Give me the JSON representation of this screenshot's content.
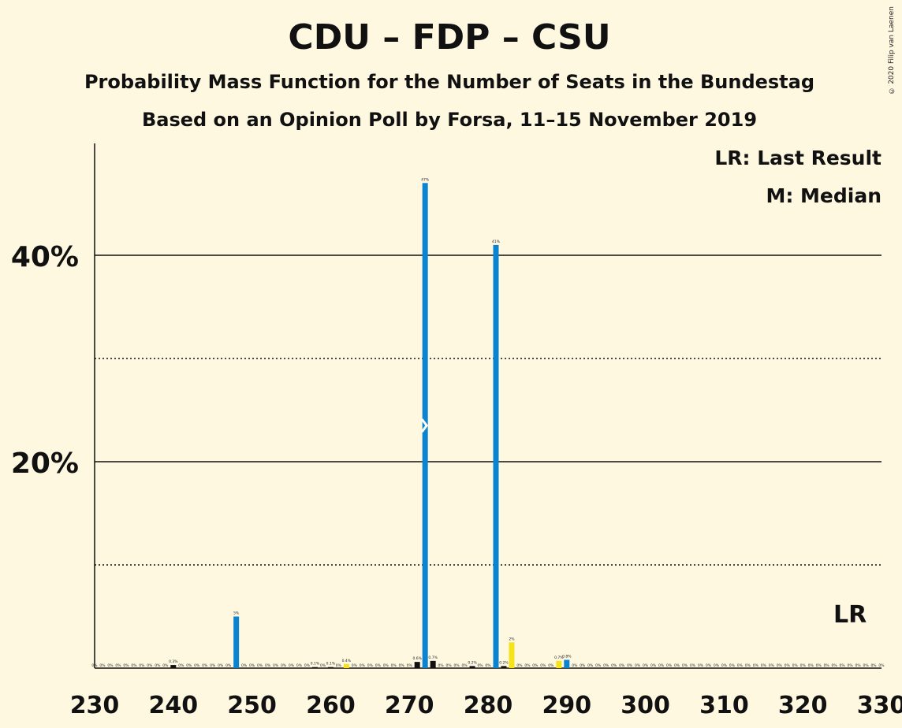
{
  "title": "CDU – FDP – CSU",
  "subtitle1": "Probability Mass Function for the Number of Seats in the Bundestag",
  "subtitle2": "Based on an Opinion Poll by Forsa, 11–15 November 2019",
  "copyright": "© 2020 Filip van Laenen",
  "legend": {
    "lr": "LR: Last Result",
    "median": "M: Median"
  },
  "lr_marker": "LR",
  "median_marker": "M",
  "colors": {
    "background": "#fff8e1",
    "blue": "#0a84d0",
    "yellow": "#f5e21a",
    "black": "#111111"
  },
  "chart_data": {
    "type": "bar",
    "xlim": [
      230,
      330
    ],
    "ylim": [
      0,
      50
    ],
    "xticks": [
      230,
      240,
      250,
      260,
      270,
      280,
      290,
      300,
      310,
      320,
      330
    ],
    "yticks_labeled": [
      {
        "value": 20,
        "label": "20%"
      },
      {
        "value": 40,
        "label": "40%"
      }
    ],
    "solid_gridlines": [
      20,
      40
    ],
    "dotted_gridlines": [
      10,
      30
    ],
    "median": 272,
    "last_result": 326,
    "bars": [
      {
        "x": 240,
        "y": 0.3,
        "label": "0.3%",
        "color": "black"
      },
      {
        "x": 248,
        "y": 5,
        "label": "5%",
        "color": "blue"
      },
      {
        "x": 258,
        "y": 0.1,
        "label": "0.1%",
        "color": "black"
      },
      {
        "x": 260,
        "y": 0.1,
        "label": "0.1%",
        "color": "black"
      },
      {
        "x": 262,
        "y": 0.4,
        "label": "0.4%",
        "color": "yellow"
      },
      {
        "x": 271,
        "y": 0.6,
        "label": "0.6%",
        "color": "black"
      },
      {
        "x": 272,
        "y": 47,
        "label": "47%",
        "color": "blue"
      },
      {
        "x": 273,
        "y": 0.7,
        "label": "0.7%",
        "color": "black"
      },
      {
        "x": 278,
        "y": 0.2,
        "label": "0.2%",
        "color": "black"
      },
      {
        "x": 281,
        "y": 41,
        "label": "41%",
        "color": "blue"
      },
      {
        "x": 282,
        "y": 0.2,
        "label": "0.2%",
        "color": "black"
      },
      {
        "x": 283,
        "y": 2.5,
        "label": "2%",
        "color": "yellow"
      },
      {
        "x": 289,
        "y": 0.7,
        "label": "0.7%",
        "color": "yellow"
      },
      {
        "x": 290,
        "y": 0.8,
        "label": "0.8%",
        "color": "blue"
      }
    ],
    "zero_label": "0%",
    "tiny_label": "0.1%"
  }
}
